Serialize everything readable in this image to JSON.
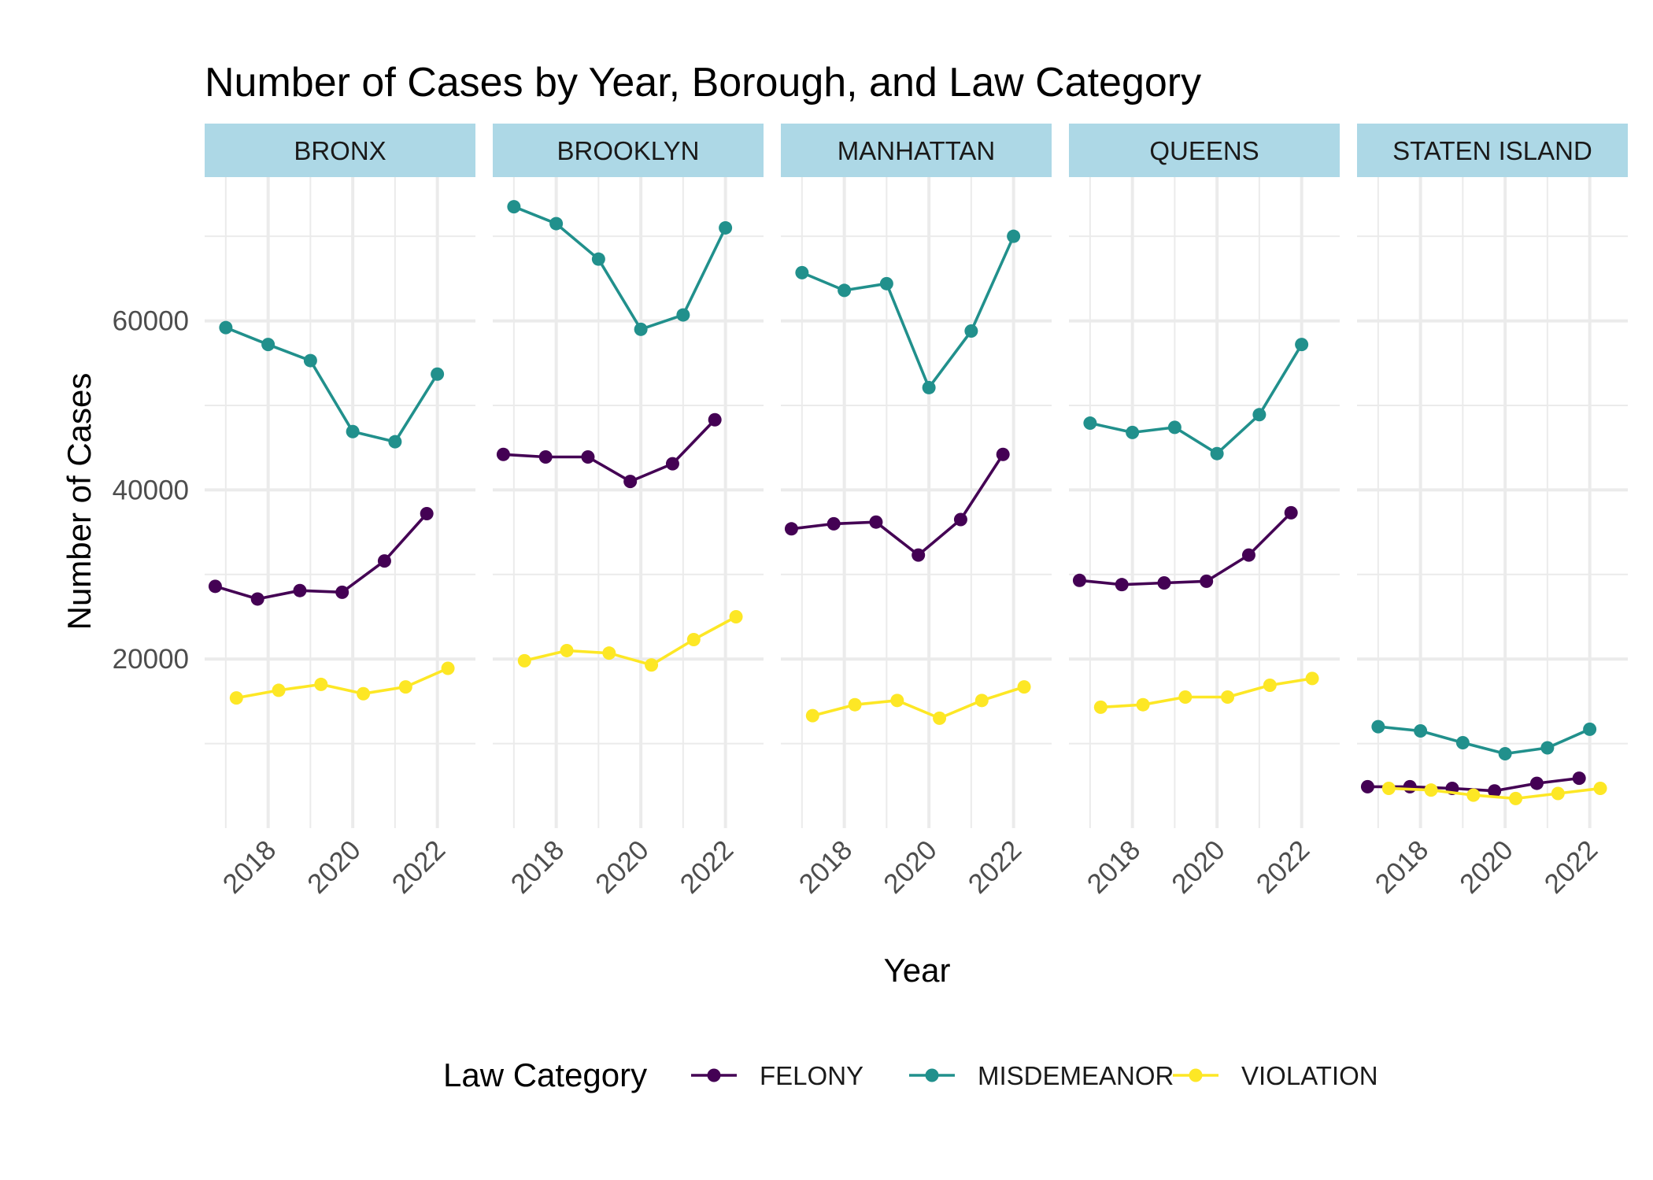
{
  "chart_data": {
    "type": "line",
    "title": "Number of Cases by Year, Borough, and Law Category",
    "xlabel": "Year",
    "ylabel": "Number of Cases",
    "x_ticks": [
      2018,
      2020,
      2022
    ],
    "y_ticks": [
      20000,
      40000,
      60000
    ],
    "xlim": [
      2016.5,
      2022.9
    ],
    "ylim": [
      0,
      77000
    ],
    "grid": true,
    "legend": {
      "title": "Law Category",
      "position": "bottom",
      "entries": [
        "FELONY",
        "MISDEMEANOR",
        "VIOLATION"
      ]
    },
    "colors": {
      "FELONY": "#440154",
      "MISDEMEANOR": "#21908C",
      "VIOLATION": "#FDE725",
      "strip": "#ADD8E6",
      "grid": "#ebebeb"
    },
    "panels": [
      {
        "name": "BRONX",
        "series": [
          {
            "name": "FELONY",
            "x": [
              2016.75,
              2017.75,
              2018.75,
              2019.75,
              2020.75,
              2021.75
            ],
            "y": [
              28600,
              27100,
              28100,
              27900,
              31600,
              37200
            ]
          },
          {
            "name": "MISDEMEANOR",
            "x": [
              2017.0,
              2018.0,
              2019.0,
              2020.0,
              2021.0,
              2022.0
            ],
            "y": [
              59200,
              57200,
              55300,
              46900,
              45700,
              53700
            ]
          },
          {
            "name": "VIOLATION",
            "x": [
              2017.25,
              2018.25,
              2019.25,
              2020.25,
              2021.25,
              2022.25
            ],
            "y": [
              15400,
              16300,
              17000,
              15900,
              16700,
              18900
            ]
          }
        ]
      },
      {
        "name": "BROOKLYN",
        "series": [
          {
            "name": "FELONY",
            "x": [
              2016.75,
              2017.75,
              2018.75,
              2019.75,
              2020.75,
              2021.75
            ],
            "y": [
              44200,
              43900,
              43900,
              41000,
              43100,
              48300
            ]
          },
          {
            "name": "MISDEMEANOR",
            "x": [
              2017.0,
              2018.0,
              2019.0,
              2020.0,
              2021.0,
              2022.0
            ],
            "y": [
              73500,
              71500,
              67300,
              59000,
              60700,
              71000
            ]
          },
          {
            "name": "VIOLATION",
            "x": [
              2017.25,
              2018.25,
              2019.25,
              2020.25,
              2021.25,
              2022.25
            ],
            "y": [
              19800,
              21000,
              20700,
              19300,
              22300,
              25000
            ]
          }
        ]
      },
      {
        "name": "MANHATTAN",
        "series": [
          {
            "name": "FELONY",
            "x": [
              2016.75,
              2017.75,
              2018.75,
              2019.75,
              2020.75,
              2021.75
            ],
            "y": [
              35400,
              36000,
              36200,
              32300,
              36500,
              44200
            ]
          },
          {
            "name": "MISDEMEANOR",
            "x": [
              2017.0,
              2018.0,
              2019.0,
              2020.0,
              2021.0,
              2022.0
            ],
            "y": [
              65700,
              63600,
              64400,
              52100,
              58800,
              70000
            ]
          },
          {
            "name": "VIOLATION",
            "x": [
              2017.25,
              2018.25,
              2019.25,
              2020.25,
              2021.25,
              2022.25
            ],
            "y": [
              13300,
              14600,
              15100,
              13000,
              15100,
              16700
            ]
          }
        ]
      },
      {
        "name": "QUEENS",
        "series": [
          {
            "name": "FELONY",
            "x": [
              2016.75,
              2017.75,
              2018.75,
              2019.75,
              2020.75,
              2021.75
            ],
            "y": [
              29300,
              28800,
              29000,
              29200,
              32300,
              37300
            ]
          },
          {
            "name": "MISDEMEANOR",
            "x": [
              2017.0,
              2018.0,
              2019.0,
              2020.0,
              2021.0,
              2022.0
            ],
            "y": [
              47900,
              46800,
              47400,
              44300,
              48900,
              57200
            ]
          },
          {
            "name": "VIOLATION",
            "x": [
              2017.25,
              2018.25,
              2019.25,
              2020.25,
              2021.25,
              2022.25
            ],
            "y": [
              14300,
              14600,
              15500,
              15500,
              16900,
              17700
            ]
          }
        ]
      },
      {
        "name": "STATEN ISLAND",
        "series": [
          {
            "name": "FELONY",
            "x": [
              2016.75,
              2017.75,
              2018.75,
              2019.75,
              2020.75,
              2021.75
            ],
            "y": [
              4900,
              4900,
              4700,
              4400,
              5300,
              5900
            ]
          },
          {
            "name": "MISDEMEANOR",
            "x": [
              2017.0,
              2018.0,
              2019.0,
              2020.0,
              2021.0,
              2022.0
            ],
            "y": [
              12000,
              11500,
              10100,
              8800,
              9500,
              11700
            ]
          },
          {
            "name": "VIOLATION",
            "x": [
              2017.25,
              2018.25,
              2019.25,
              2020.25,
              2021.25,
              2022.25
            ],
            "y": [
              4700,
              4500,
              3900,
              3500,
              4100,
              4700
            ]
          }
        ]
      }
    ]
  }
}
